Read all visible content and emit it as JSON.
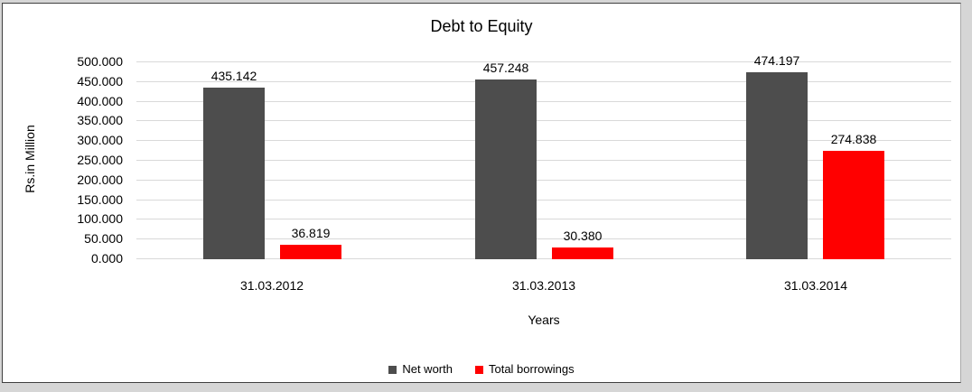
{
  "chart_data": {
    "type": "bar",
    "title": "Debt to Equity",
    "xlabel": "Years",
    "ylabel": "Rs.in Million",
    "categories": [
      "31.03.2012",
      "31.03.2013",
      "31.03.2014"
    ],
    "series": [
      {
        "name": "Net worth",
        "color": "#4d4d4d",
        "values": [
          435.142,
          457.248,
          474.197
        ],
        "labels": [
          "435.142",
          "457.248",
          "474.197"
        ]
      },
      {
        "name": "Total borrowings",
        "color": "#ff0000",
        "values": [
          36.819,
          30.38,
          274.838
        ],
        "labels": [
          "36.819",
          "30.380",
          "274.838"
        ]
      }
    ],
    "ylim": [
      0,
      500
    ],
    "ytick_step": 50,
    "ytick_labels": [
      "0.000",
      "50.000",
      "100.000",
      "150.000",
      "200.000",
      "250.000",
      "300.000",
      "350.000",
      "400.000",
      "450.000",
      "500.000"
    ],
    "grid": true,
    "gridline_color": "#d9d9d9",
    "legend_position": "bottom"
  }
}
